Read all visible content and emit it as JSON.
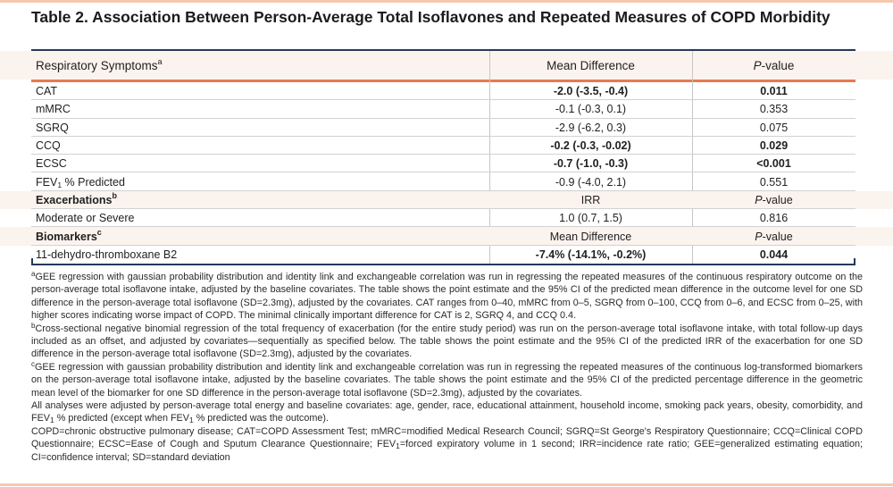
{
  "title": "Table 2. Association Between Person-Average Total Isoflavones and Repeated Measures of COPD Morbidity",
  "colors": {
    "accent_salmon": "#F5C8AE",
    "navy_rule": "#24395B",
    "orange_rule": "#E87A4E",
    "section_row_bg": "#FBF3EE",
    "divider_gray": "#D2D2D2"
  },
  "table": {
    "header1": {
      "label": "Respiratory Symptoms",
      "sup": "a",
      "col2": "Mean Difference",
      "p_italic": "P",
      "p_rest": "-value"
    },
    "rows1": [
      {
        "label": "CAT",
        "value": "-2.0 (-3.5, -0.4)",
        "p": "0.011"
      },
      {
        "label": "mMRC",
        "value": "-0.1 (-0.3, 0.1)",
        "p": "0.353"
      },
      {
        "label": "SGRQ",
        "value": "-2.9 (-6.2, 0.3)",
        "p": "0.075"
      },
      {
        "label": "CCQ",
        "value": "-0.2 (-0.3, -0.02)",
        "p": "0.029"
      },
      {
        "label": "ECSC",
        "value": "-0.7 (-1.0, -0.3)",
        "p": "<0.001"
      },
      {
        "label_pre": "FEV",
        "label_sub": "1",
        "label_post": " % Predicted",
        "value": "-0.9 (-4.0, 2.1)",
        "p": "0.551"
      }
    ],
    "header2": {
      "label": "Exacerbations",
      "sup": "b",
      "col2": "IRR",
      "p_italic": "P",
      "p_rest": "-value"
    },
    "rows2": [
      {
        "label": "Moderate or Severe",
        "value": "1.0 (0.7, 1.5)",
        "p": "0.816"
      }
    ],
    "header3": {
      "label": "Biomarkers",
      "sup": "c",
      "col2": "Mean Difference",
      "p_italic": "P",
      "p_rest": "-value"
    },
    "rows3": [
      {
        "label": "11-dehydro-thromboxane B2",
        "value": "-7.4% (-14.1%, -0.2%)",
        "p": "0.044"
      }
    ]
  },
  "footnotes": {
    "a": {
      "sup": "a",
      "text": "GEE regression with gaussian probability distribution and identity link and exchangeable correlation was run in regressing the repeated measures of the continuous respiratory outcome on the person-average total isoflavone intake, adjusted by the baseline covariates. The table shows the point estimate and the 95% CI of the predicted mean difference in the outcome level for one SD difference in the person-average total isoflavone (SD=2.3mg), adjusted by the covariates. CAT ranges from 0–40, mMRC from 0–5, SGRQ from 0–100, CCQ from 0–6, and ECSC from 0–25, with higher scores indicating worse impact of COPD. The minimal clinically important difference for CAT is 2, SGRQ 4, and CCQ 0.4."
    },
    "b": {
      "sup": "b",
      "text": "Cross-sectional negative binomial regression of the total frequency of exacerbation (for the entire study period) was run on the person-average total isoflavone intake, with total follow-up days included as an offset, and adjusted by covariates—sequentially as specified below. The table shows the point estimate and the 95% CI of the predicted IRR of the exacerbation for one SD difference in the person-average total isoflavone (SD=2.3mg), adjusted by the covariates."
    },
    "c": {
      "sup": "c",
      "text": "GEE regression with gaussian probability distribution and identity link and exchangeable correlation was run in regressing the repeated measures of the continuous log-transformed biomarkers on the person-average total isoflavone intake, adjusted by the baseline covariates. The table shows the point estimate and the 95% CI of the predicted percentage difference in the geometric mean level of the biomarker for one SD difference in the person-average total isoflavone (SD=2.3mg), adjusted by the covariates."
    },
    "all": {
      "part1": "All analyses were adjusted by person-average total energy and baseline covariates: age, gender, race, educational attainment, household income, smoking pack years, obesity, comorbidity, and FEV",
      "sub1": "1",
      "part2": " % predicted (except when FEV",
      "sub2": "1",
      "part3": " % predicted was the outcome)."
    },
    "abbrev": {
      "part1": "COPD=chronic obstructive pulmonary disease; CAT=COPD Assessment Test; mMRC=modified Medical Research Council; SGRQ=St George's Respiratory Questionnaire; CCQ=Clinical COPD Questionnaire; ECSC=Ease of Cough and Sputum Clearance Questionnaire; FEV",
      "sub1": "1",
      "part2": "=forced expiratory volume in 1 second; IRR=incidence rate ratio; GEE=generalized estimating equation; CI=confidence interval; SD=standard deviation"
    }
  }
}
